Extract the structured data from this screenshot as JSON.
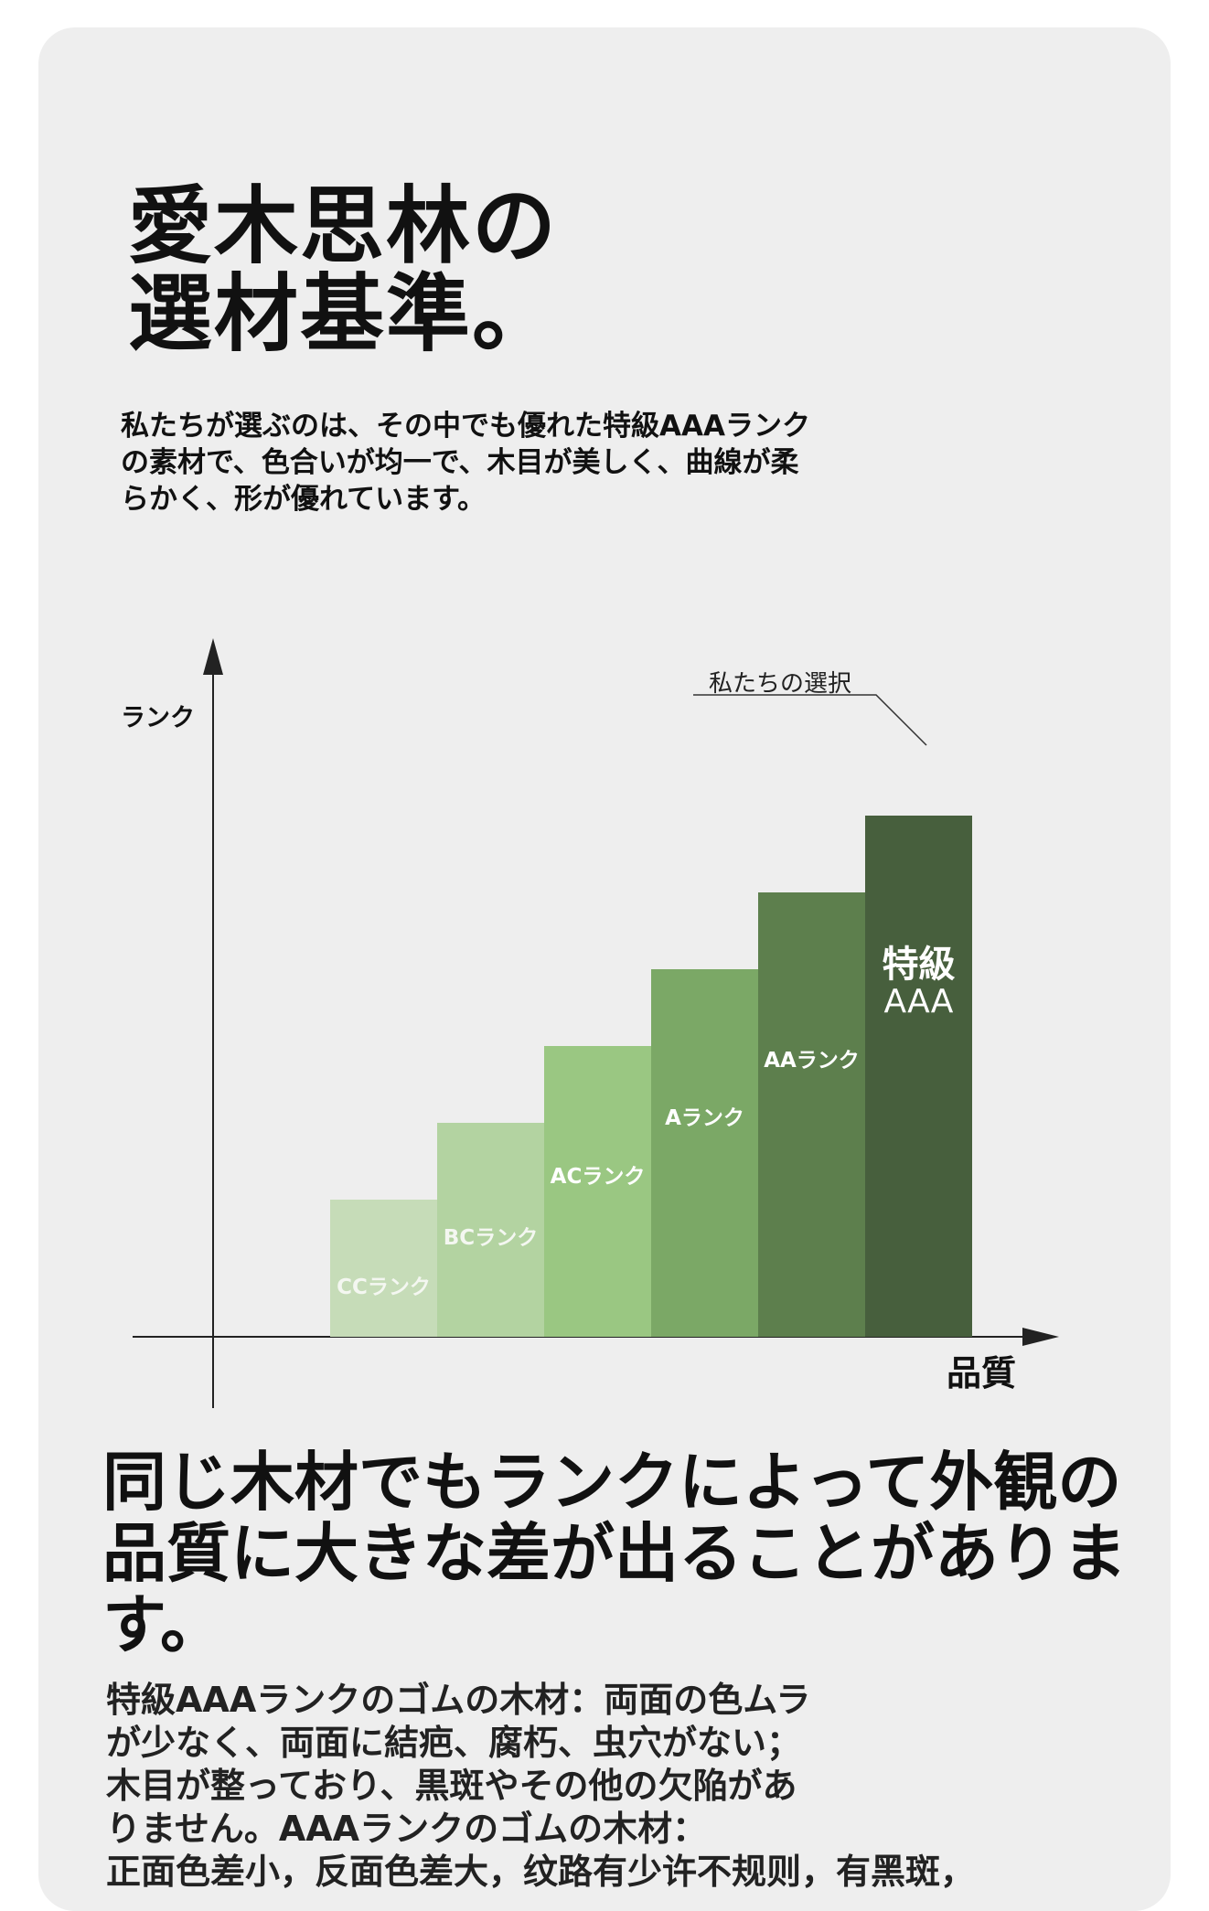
{
  "title": {
    "line1": "愛木思林の",
    "line2": "選材基準。"
  },
  "intro": {
    "line1": "私たちが選ぶのは、その中でも優れた特級AAAランク",
    "line2": "の素材で、色合いが均一で、木目が美しく、曲線が柔",
    "line3": "らかく、形が優れています。"
  },
  "chart_data": {
    "type": "bar",
    "ylabel": "ランク",
    "xlabel": "品質",
    "categories": [
      "CCランク",
      "BCランク",
      "ACランク",
      "Aランク",
      "AAランク",
      "特級AAA"
    ],
    "values": [
      1,
      2,
      3,
      4,
      5,
      6
    ],
    "colors": [
      "#c6dcb8",
      "#b3d3a1",
      "#9ac782",
      "#7ba866",
      "#5d7f4d",
      "#475f3d"
    ],
    "label_colors": [
      "#f4f7f1",
      "#f4f7f1",
      "#ffffff",
      "#ffffff",
      "#ffffff",
      "#ffffff"
    ],
    "annotation": "私たちの選択",
    "highlight_index": 5,
    "grid": false,
    "legend": "none"
  },
  "heading2": {
    "line1": "同じ木材でもランクによって外観の",
    "line2": "品質に大きな差が出ることがありま",
    "line3": "す。"
  },
  "body": {
    "line1": "特級AAAランクのゴムの木材：両面の色ムラ",
    "line2": "が少なく、両面に結疤、腐朽、虫穴がない；",
    "line3": "木目が整っており、黒斑やその他の欠陥があ",
    "line4": "りません。AAAランクのゴムの木材：",
    "line5": "正面色差小，反面色差大，纹路有少许不规则，有黑斑，"
  }
}
